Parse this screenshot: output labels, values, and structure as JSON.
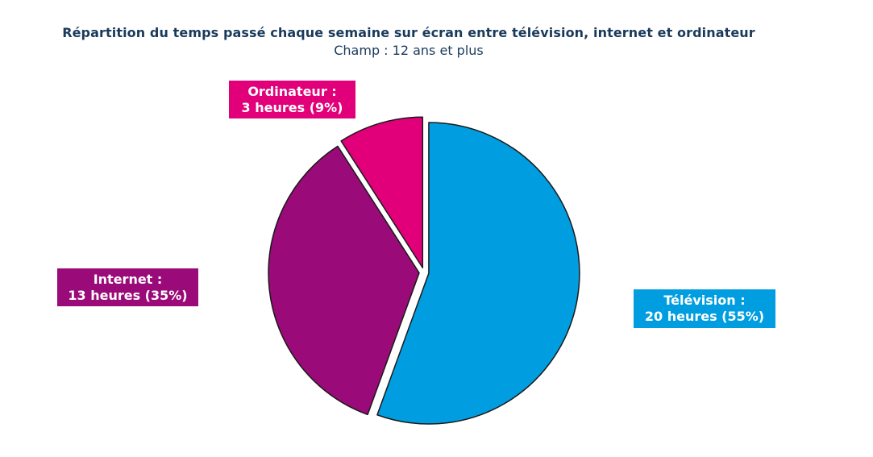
{
  "title": "Répartition du temps passé chaque semaine sur écran entre télévision, internet et ordinateur",
  "subtitle": "Champ : 12 ans et plus",
  "chart_data": {
    "type": "pie",
    "title": "Répartition du temps passé chaque semaine sur écran entre télévision, internet et ordinateur",
    "subtitle": "Champ : 12 ans et plus",
    "slices": [
      {
        "key": "television",
        "label_line1": "Télévision :",
        "label_line2": "20 heures (55%)",
        "hours": 20,
        "percent": 55,
        "color": "#009ee0"
      },
      {
        "key": "internet",
        "label_line1": "Internet :",
        "label_line2": "13 heures (35%)",
        "hours": 13,
        "percent": 35,
        "color": "#9a0a78"
      },
      {
        "key": "ordinateur",
        "label_line1": "Ordinateur :",
        "label_line2": "3 heures (9%)",
        "hours": 3,
        "percent": 9,
        "color": "#e2007a"
      }
    ]
  }
}
